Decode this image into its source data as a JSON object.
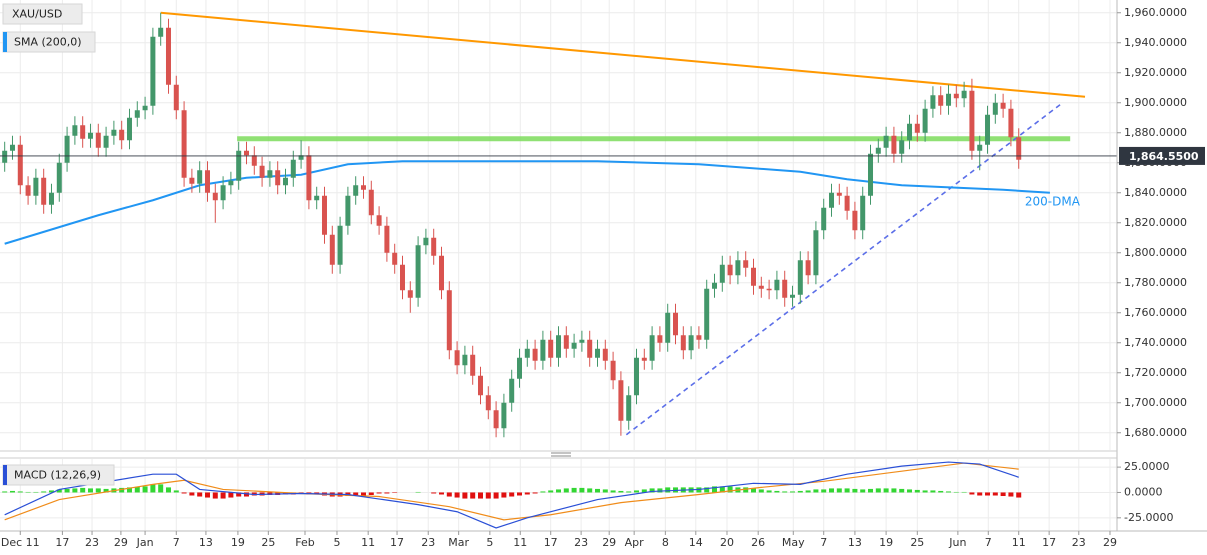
{
  "chart_data": [
    {
      "type": "candlestick",
      "title": "XAU/USD",
      "xlim": [
        -0.6,
        142.6
      ],
      "ylim": [
        1668.5,
        1968.5
      ],
      "yticks": [
        {
          "value": 1680,
          "label": "1,680.0000"
        },
        {
          "value": 1700,
          "label": "1,700.0000"
        },
        {
          "value": 1720,
          "label": "1,720.0000"
        },
        {
          "value": 1740,
          "label": "1,740.0000"
        },
        {
          "value": 1760,
          "label": "1,760.0000"
        },
        {
          "value": 1780,
          "label": "1,780.0000"
        },
        {
          "value": 1800,
          "label": "1,800.0000"
        },
        {
          "value": 1820,
          "label": "1,820.0000"
        },
        {
          "value": 1840,
          "label": "1,840.0000"
        },
        {
          "value": 1860,
          "label": "1,860.0000"
        },
        {
          "value": 1880,
          "label": "1,880.0000"
        },
        {
          "value": 1900,
          "label": "1,900.0000"
        },
        {
          "value": 1920,
          "label": "1,920.0000"
        },
        {
          "value": 1940,
          "label": "1,940.0000"
        },
        {
          "value": 1960,
          "label": "1,960.0000"
        }
      ],
      "up_color": "#43976a",
      "down_color": "#d9534f",
      "open": [
        1860,
        1868,
        1872,
        1845,
        1838,
        1850,
        1832,
        1840,
        1860,
        1878,
        1885,
        1876,
        1880,
        1870,
        1878,
        1882,
        1875,
        1890,
        1895,
        1898,
        1944,
        1950,
        1912,
        1895,
        1850,
        1846,
        1855,
        1840,
        1835,
        1845,
        1848,
        1868,
        1865,
        1858,
        1850,
        1855,
        1845,
        1850,
        1862,
        1865,
        1835,
        1838,
        1812,
        1792,
        1818,
        1838,
        1845,
        1842,
        1825,
        1818,
        1800,
        1792,
        1775,
        1770,
        1805,
        1810,
        1798,
        1775,
        1735,
        1725,
        1732,
        1718,
        1705,
        1695,
        1683,
        1700,
        1716,
        1730,
        1736,
        1728,
        1742,
        1730,
        1745,
        1736,
        1740,
        1742,
        1730,
        1736,
        1728,
        1715,
        1688,
        1705,
        1730,
        1728,
        1745,
        1740,
        1760,
        1745,
        1735,
        1745,
        1742,
        1776,
        1780,
        1792,
        1785,
        1795,
        1790,
        1778,
        1776,
        1775,
        1782,
        1770,
        1772,
        1795,
        1785,
        1815,
        1830,
        1840,
        1838,
        1828,
        1815,
        1838,
        1866,
        1870,
        1878,
        1866,
        1875,
        1886,
        1880,
        1896,
        1905,
        1898,
        1906,
        1903,
        1908,
        1868,
        1872,
        1892,
        1900,
        1896,
        1877
      ],
      "high": [
        1874,
        1878,
        1878,
        1851,
        1856,
        1856,
        1846,
        1866,
        1884,
        1891,
        1891,
        1886,
        1886,
        1884,
        1888,
        1888,
        1896,
        1901,
        1904,
        1950,
        1960,
        1956,
        1918,
        1901,
        1856,
        1861,
        1861,
        1846,
        1851,
        1854,
        1874,
        1874,
        1871,
        1864,
        1861,
        1861,
        1856,
        1868,
        1875,
        1871,
        1844,
        1844,
        1818,
        1824,
        1844,
        1851,
        1851,
        1848,
        1831,
        1824,
        1806,
        1798,
        1781,
        1811,
        1816,
        1816,
        1804,
        1781,
        1741,
        1738,
        1738,
        1724,
        1711,
        1701,
        1706,
        1722,
        1736,
        1742,
        1742,
        1748,
        1748,
        1751,
        1751,
        1746,
        1748,
        1748,
        1742,
        1742,
        1734,
        1721,
        1711,
        1736,
        1736,
        1751,
        1751,
        1766,
        1766,
        1751,
        1751,
        1751,
        1782,
        1786,
        1798,
        1798,
        1801,
        1801,
        1796,
        1784,
        1782,
        1788,
        1788,
        1778,
        1801,
        1801,
        1821,
        1836,
        1846,
        1846,
        1844,
        1834,
        1844,
        1872,
        1876,
        1884,
        1884,
        1881,
        1892,
        1892,
        1902,
        1911,
        1911,
        1912,
        1912,
        1914,
        1916,
        1878,
        1898,
        1906,
        1906,
        1902,
        1883
      ],
      "low": [
        1854,
        1862,
        1839,
        1832,
        1832,
        1826,
        1826,
        1834,
        1854,
        1872,
        1870,
        1870,
        1864,
        1864,
        1872,
        1869,
        1869,
        1884,
        1889,
        1892,
        1938,
        1906,
        1889,
        1844,
        1840,
        1840,
        1834,
        1820,
        1829,
        1839,
        1842,
        1859,
        1852,
        1844,
        1844,
        1839,
        1839,
        1844,
        1856,
        1829,
        1829,
        1806,
        1786,
        1786,
        1812,
        1832,
        1836,
        1819,
        1812,
        1794,
        1786,
        1769,
        1760,
        1764,
        1799,
        1792,
        1769,
        1729,
        1719,
        1719,
        1712,
        1699,
        1689,
        1677,
        1677,
        1694,
        1710,
        1724,
        1722,
        1722,
        1724,
        1724,
        1730,
        1730,
        1734,
        1724,
        1724,
        1722,
        1709,
        1678,
        1682,
        1699,
        1722,
        1722,
        1734,
        1734,
        1739,
        1729,
        1729,
        1736,
        1736,
        1770,
        1774,
        1779,
        1779,
        1784,
        1772,
        1770,
        1769,
        1769,
        1764,
        1764,
        1766,
        1779,
        1779,
        1809,
        1824,
        1832,
        1822,
        1809,
        1809,
        1832,
        1860,
        1864,
        1860,
        1860,
        1869,
        1874,
        1874,
        1890,
        1892,
        1892,
        1897,
        1897,
        1862,
        1855,
        1866,
        1886,
        1890,
        1871,
        1856
      ],
      "close": [
        1868,
        1872,
        1845,
        1838,
        1850,
        1832,
        1840,
        1860,
        1878,
        1885,
        1876,
        1880,
        1870,
        1878,
        1882,
        1875,
        1890,
        1895,
        1898,
        1944,
        1950,
        1912,
        1895,
        1850,
        1846,
        1855,
        1840,
        1835,
        1845,
        1848,
        1868,
        1865,
        1858,
        1850,
        1855,
        1845,
        1850,
        1862,
        1865,
        1835,
        1838,
        1812,
        1792,
        1818,
        1838,
        1845,
        1842,
        1825,
        1818,
        1800,
        1792,
        1775,
        1770,
        1805,
        1810,
        1798,
        1775,
        1735,
        1725,
        1732,
        1718,
        1705,
        1695,
        1683,
        1700,
        1716,
        1730,
        1736,
        1728,
        1742,
        1730,
        1745,
        1736,
        1740,
        1742,
        1730,
        1736,
        1728,
        1715,
        1688,
        1705,
        1730,
        1728,
        1745,
        1740,
        1760,
        1745,
        1735,
        1745,
        1742,
        1776,
        1780,
        1792,
        1785,
        1795,
        1790,
        1778,
        1776,
        1775,
        1782,
        1770,
        1772,
        1795,
        1785,
        1815,
        1830,
        1840,
        1838,
        1828,
        1815,
        1838,
        1866,
        1870,
        1878,
        1866,
        1875,
        1886,
        1880,
        1896,
        1905,
        1898,
        1906,
        1903,
        1908,
        1868,
        1872,
        1892,
        1900,
        1896,
        1877,
        1862
      ],
      "sma": {
        "name": "SMA (200,0)",
        "color": "#2196f3",
        "annotation": "200-DMA",
        "x": [
          0,
          12,
          19,
          25,
          31,
          38,
          44,
          51,
          64,
          76,
          89,
          102,
          108,
          115,
          128,
          134
        ],
        "values": [
          1806,
          1825,
          1835,
          1845,
          1850,
          1852,
          1859,
          1861,
          1861,
          1861,
          1859,
          1854,
          1849,
          1845,
          1842,
          1840
        ]
      },
      "resistance": {
        "color": "#ff9800",
        "x": [
          20,
          138.5
        ],
        "values": [
          1960,
          1904
        ]
      },
      "support": {
        "color": "#7ddc5c",
        "x": [
          29.8,
          136.6
        ],
        "values": [
          1876,
          1876
        ]
      },
      "trendline": {
        "color": "#5b6ee8",
        "dashed": true,
        "x": [
          79.7,
          135.3
        ],
        "values": [
          1678.7,
          1898.7
        ]
      },
      "last_price": {
        "value": 1864.55,
        "label": "1,864.5500",
        "color": "#2f3640"
      }
    },
    {
      "type": "macd",
      "title": "MACD (12,26,9)",
      "xlim": [
        -0.6,
        142.6
      ],
      "ylim": [
        -38,
        33
      ],
      "yticks": [
        {
          "value": 25,
          "label": "25.0000"
        },
        {
          "value": 0,
          "label": "0.0000"
        },
        {
          "value": -25,
          "label": "-25.0000"
        }
      ],
      "xticks": [
        {
          "value": 2,
          "label": "Dec 11"
        },
        {
          "value": 7.4,
          "label": "17"
        },
        {
          "value": 11.2,
          "label": "23"
        },
        {
          "value": 14.9,
          "label": "29"
        },
        {
          "value": 18,
          "label": "Jan"
        },
        {
          "value": 22,
          "label": "7"
        },
        {
          "value": 25.8,
          "label": "13"
        },
        {
          "value": 29.9,
          "label": "19"
        },
        {
          "value": 33.8,
          "label": "25"
        },
        {
          "value": 38.5,
          "label": "Feb"
        },
        {
          "value": 42.6,
          "label": "5"
        },
        {
          "value": 46.6,
          "label": "11"
        },
        {
          "value": 50.3,
          "label": "17"
        },
        {
          "value": 54.3,
          "label": "23"
        },
        {
          "value": 58.2,
          "label": "Mar"
        },
        {
          "value": 62.2,
          "label": "5"
        },
        {
          "value": 66.1,
          "label": "11"
        },
        {
          "value": 70,
          "label": "17"
        },
        {
          "value": 73.9,
          "label": "23"
        },
        {
          "value": 77.5,
          "label": "29"
        },
        {
          "value": 80.7,
          "label": "Apr"
        },
        {
          "value": 84.7,
          "label": "8"
        },
        {
          "value": 88.6,
          "label": "14"
        },
        {
          "value": 92.6,
          "label": "20"
        },
        {
          "value": 96.6,
          "label": "26"
        },
        {
          "value": 101.1,
          "label": "May"
        },
        {
          "value": 105,
          "label": "7"
        },
        {
          "value": 109,
          "label": "13"
        },
        {
          "value": 113,
          "label": "19"
        },
        {
          "value": 117,
          "label": "25"
        },
        {
          "value": 122.2,
          "label": "Jun"
        },
        {
          "value": 126.1,
          "label": "7"
        },
        {
          "value": 130,
          "label": "11"
        },
        {
          "value": 133.9,
          "label": "17"
        },
        {
          "value": 137.7,
          "label": "23"
        },
        {
          "value": 141.7,
          "label": "29"
        }
      ],
      "macd": {
        "color": "#2a4fd6",
        "x": [
          0,
          7,
          19,
          22,
          25,
          32,
          38,
          44,
          53,
          58,
          63,
          67,
          76,
          83,
          89,
          96,
          102,
          108,
          115,
          121,
          125,
          130
        ],
        "values": [
          -22,
          3,
          18,
          18,
          3,
          -2,
          -1,
          -2,
          -12,
          -19,
          -35,
          -25,
          -7,
          1,
          3,
          9,
          8,
          18,
          26,
          30,
          28,
          15
        ]
      },
      "signal": {
        "color": "#f08c1a",
        "x": [
          0,
          7,
          19,
          23,
          28,
          38,
          48,
          57,
          64,
          70,
          79,
          89,
          97,
          105,
          115,
          123,
          130
        ],
        "values": [
          -27,
          -7,
          8,
          12,
          3,
          -1,
          -4,
          -14,
          -27,
          -22,
          -10,
          -2,
          5,
          11,
          21,
          29,
          23
        ]
      },
      "histogram": {
        "up_color": "#33d633",
        "down_color": "#e01010",
        "values": [
          1,
          1.5,
          1,
          0.5,
          0.5,
          1,
          2,
          3,
          3.5,
          4,
          4.5,
          4,
          4,
          3.5,
          4,
          4.5,
          5,
          5.5,
          6,
          8,
          8,
          5,
          2,
          -1,
          -3,
          -4,
          -5,
          -6,
          -6,
          -5,
          -4,
          -4,
          -3,
          -3,
          -2.5,
          -2.5,
          -2,
          -2,
          -1.5,
          -2,
          -2,
          -3,
          -4,
          -4,
          -3.5,
          -3,
          -3,
          -2.5,
          -1,
          -1,
          -0.5,
          0,
          0,
          0.5,
          0,
          -1,
          -2,
          -4,
          -5,
          -6,
          -6,
          -6,
          -6,
          -6,
          -5,
          -4,
          -3,
          -2,
          -1,
          1,
          2,
          3,
          4,
          4.5,
          4.5,
          4,
          3.5,
          3,
          2,
          1.5,
          1,
          2,
          3,
          4,
          4,
          5,
          5,
          5,
          5,
          5,
          5,
          6,
          6,
          6,
          5,
          5,
          4,
          3,
          2,
          1.5,
          1,
          1,
          1.5,
          2,
          3,
          3,
          4,
          4,
          4,
          3.5,
          3,
          3.5,
          4,
          4,
          4,
          3.5,
          3,
          2.5,
          2,
          2,
          1.5,
          1,
          0.5,
          0.5,
          -2,
          -3,
          -3,
          -3,
          -3.5,
          -4,
          -5
        ]
      }
    }
  ]
}
